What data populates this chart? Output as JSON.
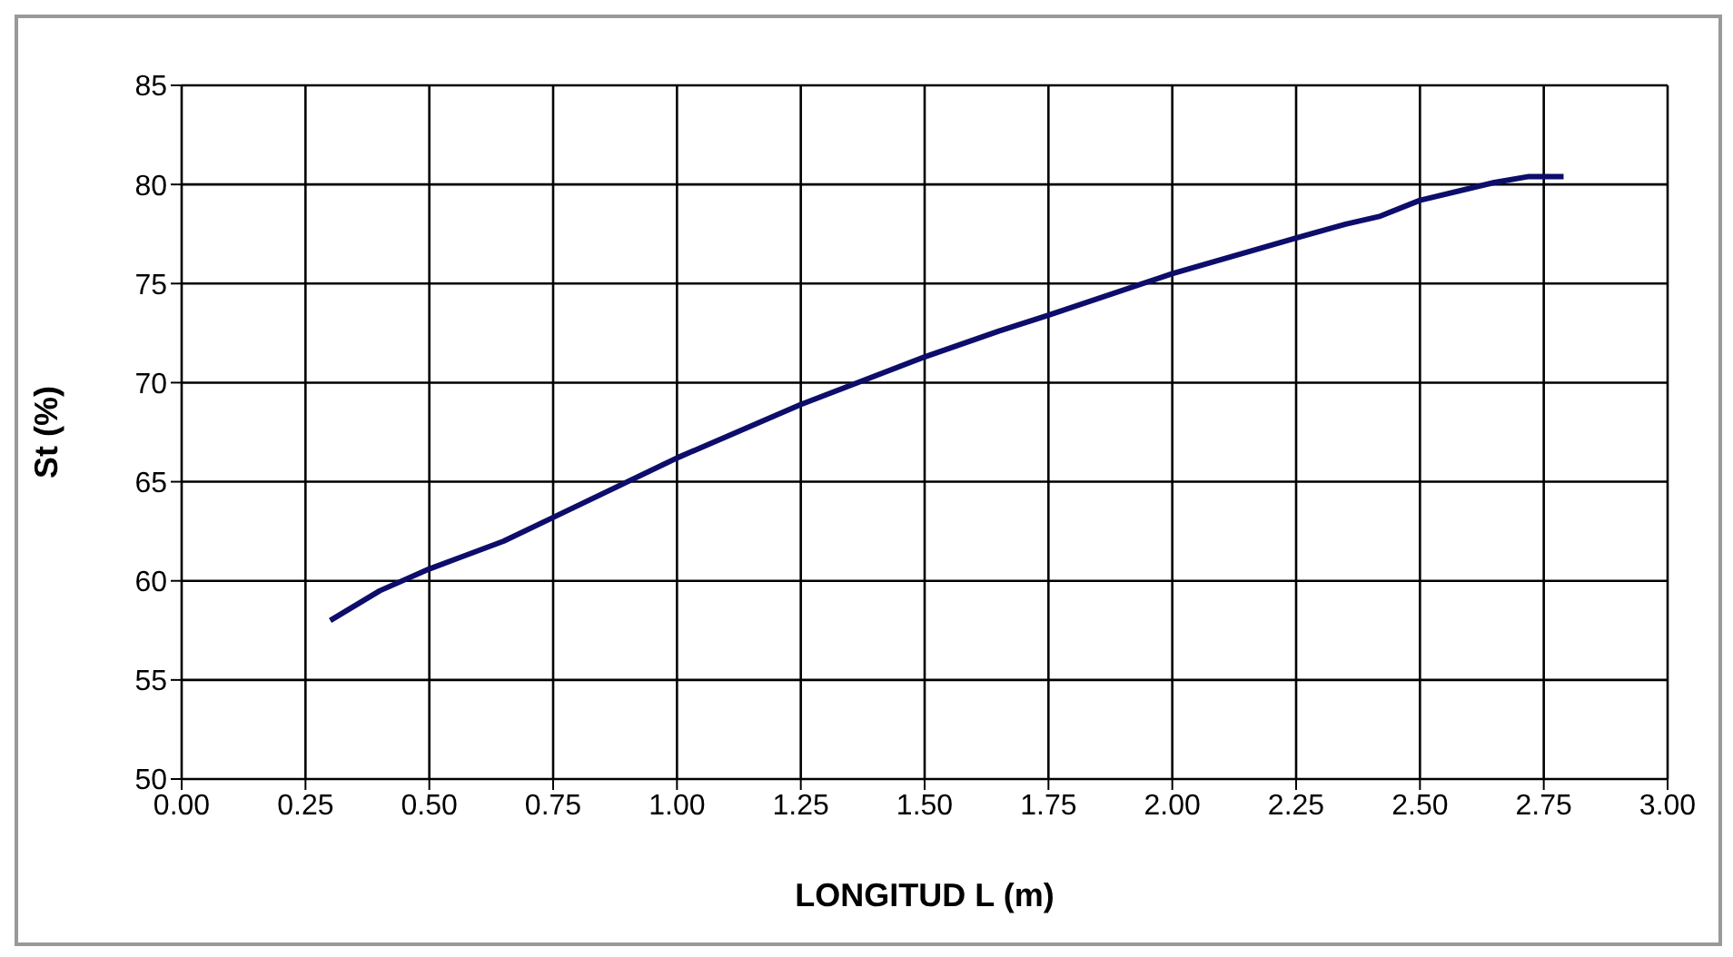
{
  "chart_data": {
    "type": "line",
    "xlabel": "LONGITUD L  (m)",
    "ylabel": "St (%)",
    "x": [
      0.3,
      0.4,
      0.5,
      0.65,
      0.75,
      1.0,
      1.25,
      1.5,
      1.65,
      1.75,
      2.0,
      2.25,
      2.35,
      2.42,
      2.5,
      2.65,
      2.72,
      2.79
    ],
    "series": [
      {
        "color": "#0d0d6b",
        "values": [
          58.0,
          59.5,
          60.6,
          62.0,
          63.2,
          66.2,
          68.9,
          71.3,
          72.6,
          73.4,
          75.5,
          77.3,
          78.0,
          78.4,
          79.2,
          80.1,
          80.4,
          80.4
        ]
      }
    ],
    "xlim": [
      0,
      3
    ],
    "xticks": [
      {
        "value": 0,
        "label": "0.00"
      },
      {
        "value": 0.25,
        "label": "0.25"
      },
      {
        "value": 0.5,
        "label": "0.50"
      },
      {
        "value": 0.75,
        "label": "0.75"
      },
      {
        "value": 1,
        "label": "1.00"
      },
      {
        "value": 1.25,
        "label": "1.25"
      },
      {
        "value": 1.5,
        "label": "1.50"
      },
      {
        "value": 1.75,
        "label": "1.75"
      },
      {
        "value": 2,
        "label": "2.00"
      },
      {
        "value": 2.25,
        "label": "2.25"
      },
      {
        "value": 2.5,
        "label": "2.50"
      },
      {
        "value": 2.75,
        "label": "2.75"
      },
      {
        "value": 3,
        "label": "3.00"
      }
    ],
    "ylim": [
      50,
      85
    ],
    "yticks": [
      50,
      55,
      60,
      65,
      70,
      75,
      80,
      85
    ],
    "grid": true,
    "marker": "none",
    "line_style": "solid"
  }
}
